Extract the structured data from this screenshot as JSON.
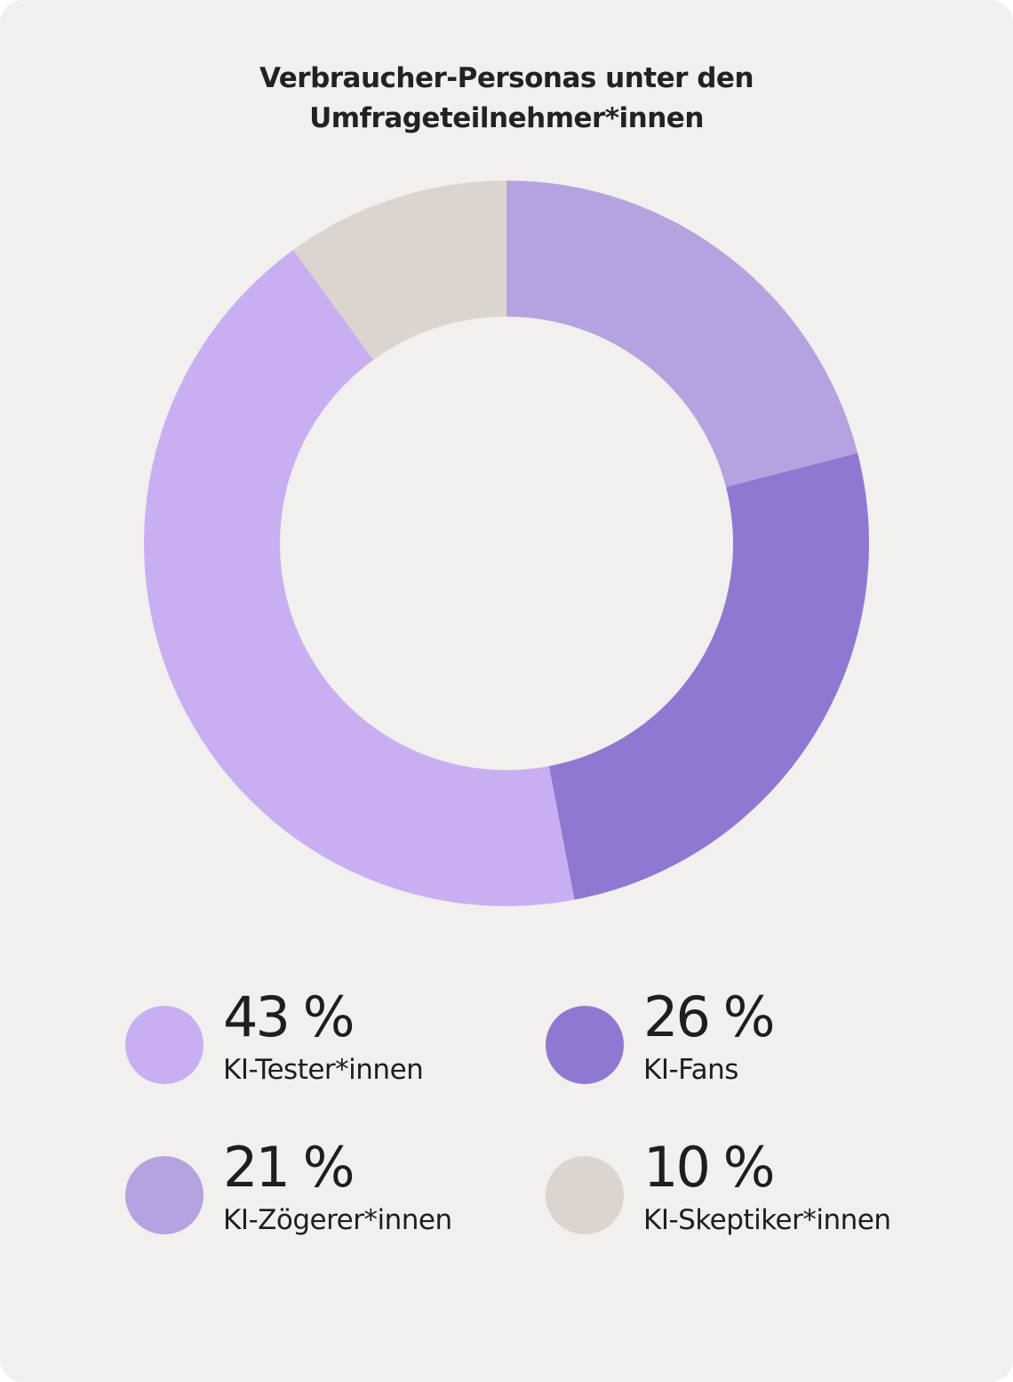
{
  "chart_data": {
    "type": "pie",
    "title": "Verbraucher-Personas unter den Umfrageteilnehmer*innen",
    "title_lines": [
      "Verbraucher-Personas unter den",
      "Umfrageteilnehmer*innen"
    ],
    "donut": true,
    "slice_order": [
      "KI-Zögerer*innen",
      "KI-Fans",
      "KI-Tester*innen",
      "KI-Skeptiker*innen"
    ],
    "slices": [
      {
        "label": "KI-Tester*innen",
        "value": 43,
        "display": "43 %",
        "color": "#c8aff2"
      },
      {
        "label": "KI-Fans",
        "value": 26,
        "display": "26 %",
        "color": "#9078d2"
      },
      {
        "label": "KI-Zögerer*innen",
        "value": 21,
        "display": "21 %",
        "color": "#b5a2df"
      },
      {
        "label": "KI-Skeptiker*innen",
        "value": 10,
        "display": "10 %",
        "color": "#dcd5cf"
      }
    ],
    "legend_placement": "bottom"
  },
  "colors": {
    "background": "#f1f0ee",
    "text": "#1e1e1e"
  }
}
